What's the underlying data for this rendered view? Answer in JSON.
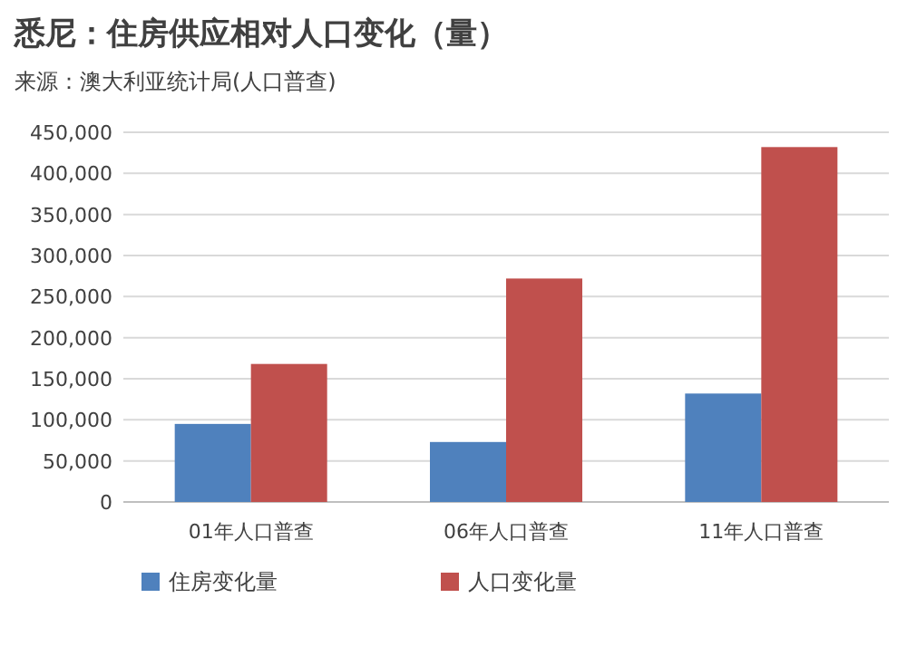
{
  "chart_data": {
    "type": "bar",
    "title": "悉尼：住房供应相对人口变化（量）",
    "annotations": [
      "来源：澳大利亚统计局(人口普查)"
    ],
    "categories": [
      "01年人口普查",
      "06年人口普查",
      "11年人口普查"
    ],
    "series": [
      {
        "name": "住房变化量",
        "color": "#4f81bd",
        "values": [
          95000,
          73000,
          132000
        ]
      },
      {
        "name": "人口变化量",
        "color": "#c0504d",
        "values": [
          168000,
          272000,
          432000
        ]
      }
    ],
    "ylim": [
      0,
      450000
    ],
    "yticks": [
      {
        "value": 0,
        "label": "0"
      },
      {
        "value": 50000,
        "label": "50,000"
      },
      {
        "value": 100000,
        "label": "100,000"
      },
      {
        "value": 150000,
        "label": "150,000"
      },
      {
        "value": 200000,
        "label": "200,000"
      },
      {
        "value": 250000,
        "label": "250,000"
      },
      {
        "value": 300000,
        "label": "300,000"
      },
      {
        "value": 350000,
        "label": "350,000"
      },
      {
        "value": 400000,
        "label": "400,000"
      },
      {
        "value": 450000,
        "label": "450,000"
      }
    ],
    "grid": "y",
    "legend": "bottom"
  }
}
